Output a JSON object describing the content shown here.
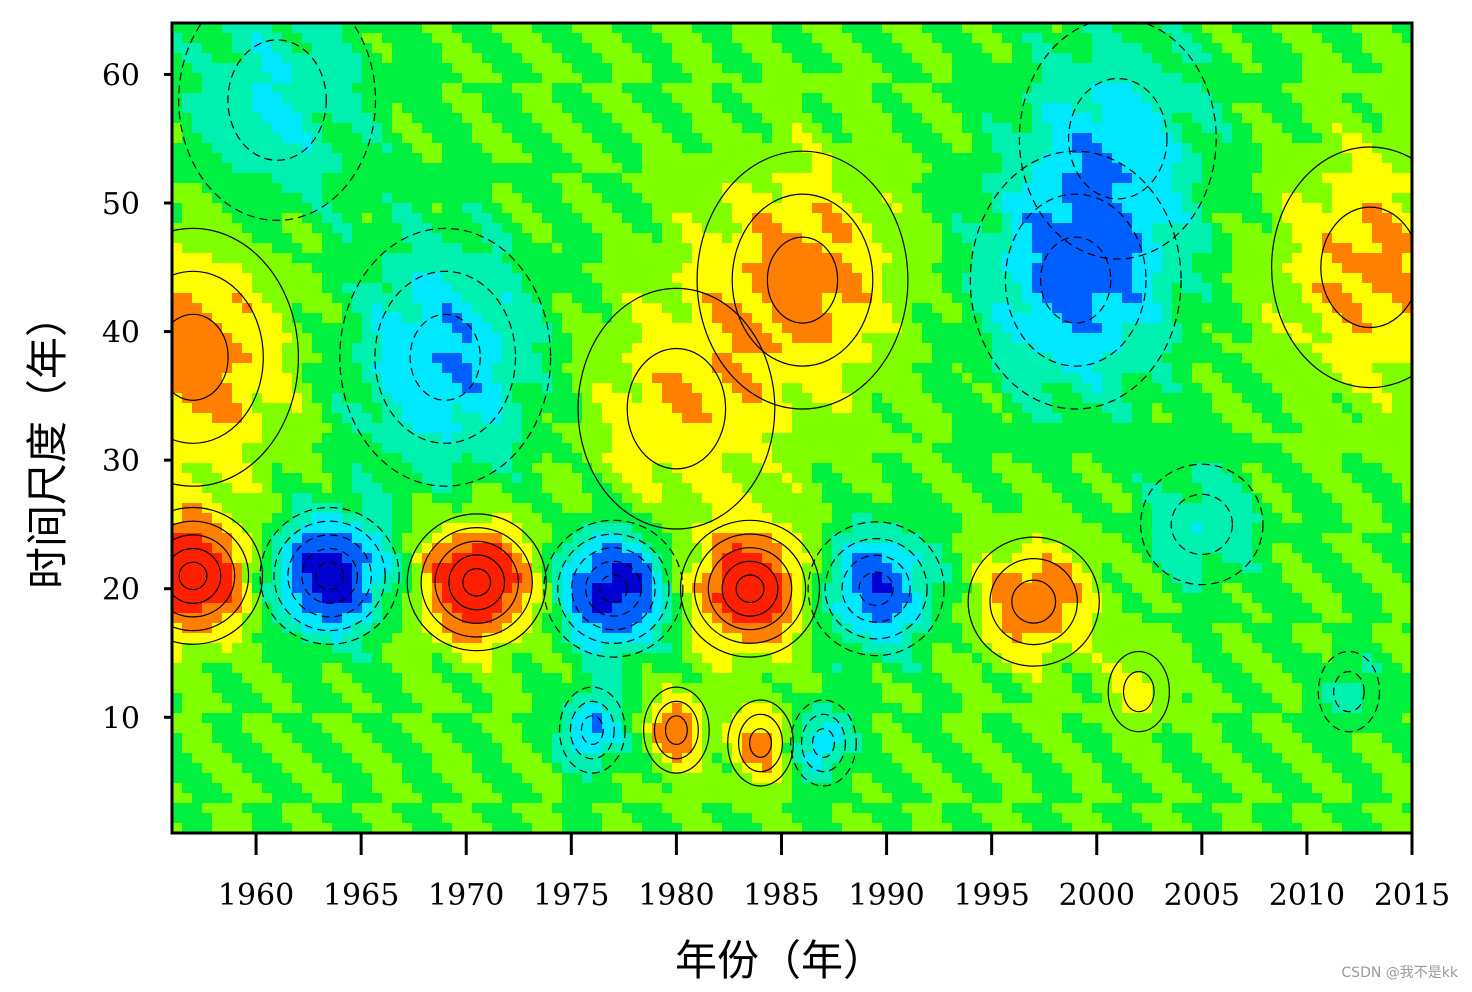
{
  "chart_data": {
    "type": "heatmap",
    "subtype": "filled-contour",
    "title": "",
    "xlabel": "年份（年）",
    "ylabel": "时间尺度（年）",
    "x_ticks": [
      1960,
      1965,
      1970,
      1975,
      1980,
      1985,
      1990,
      1995,
      2000,
      2005,
      2010,
      2015
    ],
    "y_ticks": [
      10,
      20,
      30,
      40,
      50,
      60
    ],
    "xlim": [
      1956,
      2015
    ],
    "ylim": [
      1,
      64
    ],
    "grid": false,
    "legend": "none",
    "negative_contours": "dashed",
    "positive_contours": "solid",
    "colormap": [
      "#0000d0",
      "#0060ff",
      "#00e8ff",
      "#00f0b0",
      "#00f040",
      "#80ff00",
      "#ffff00",
      "#ff8000",
      "#ff2000"
    ],
    "centers": [
      {
        "year": 1957,
        "scale": 21,
        "value": 1.0
      },
      {
        "year": 1957,
        "scale": 38,
        "value": 0.55
      },
      {
        "year": 1963.5,
        "scale": 21,
        "value": -1.0
      },
      {
        "year": 1970.5,
        "scale": 20.5,
        "value": 1.0
      },
      {
        "year": 1977,
        "scale": 20,
        "value": -0.95
      },
      {
        "year": 1983.5,
        "scale": 20,
        "value": 0.95
      },
      {
        "year": 1989.5,
        "scale": 20,
        "value": -0.75
      },
      {
        "year": 1997,
        "scale": 19,
        "value": 0.6
      },
      {
        "year": 1969,
        "scale": 38,
        "value": -0.55
      },
      {
        "year": 1980,
        "scale": 34,
        "value": 0.35
      },
      {
        "year": 1986,
        "scale": 44,
        "value": 0.5
      },
      {
        "year": 1999,
        "scale": 44,
        "value": -0.6
      },
      {
        "year": 1961,
        "scale": 58,
        "value": -0.35
      },
      {
        "year": 2001,
        "scale": 55,
        "value": -0.4
      },
      {
        "year": 2005,
        "scale": 25,
        "value": -0.35
      },
      {
        "year": 2002,
        "scale": 12,
        "value": 0.3
      },
      {
        "year": 1980,
        "scale": 9,
        "value": 0.55
      },
      {
        "year": 1984,
        "scale": 8,
        "value": 0.5
      },
      {
        "year": 1987,
        "scale": 8,
        "value": -0.5
      },
      {
        "year": 1976,
        "scale": 9,
        "value": -0.6
      },
      {
        "year": 2013,
        "scale": 45,
        "value": 0.45
      },
      {
        "year": 2012,
        "scale": 12,
        "value": -0.3
      }
    ]
  },
  "watermark": "CSDN @我不是kk"
}
